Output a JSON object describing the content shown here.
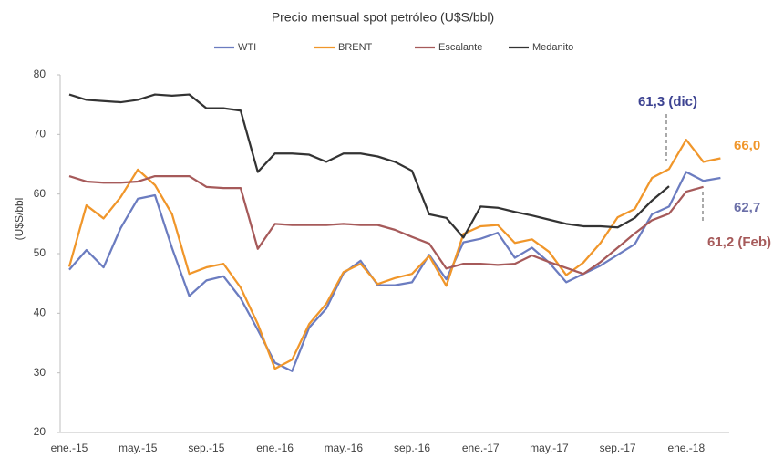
{
  "chart_data": {
    "type": "line",
    "title": "Precio mensual spot petróleo (U$S/bbl)",
    "y_label": "(U$S/bbl",
    "categories": [
      "ene.-15",
      null,
      null,
      null,
      "may.-15",
      null,
      null,
      null,
      "sep.-15",
      null,
      null,
      null,
      "ene.-16",
      null,
      null,
      null,
      "may.-16",
      null,
      null,
      null,
      "sep.-16",
      null,
      null,
      null,
      "ene.-17",
      null,
      null,
      null,
      "may.-17",
      null,
      null,
      null,
      "sep.-17",
      null,
      null,
      null,
      "ene.-18",
      null,
      null
    ],
    "series": [
      {
        "name": "WTI",
        "color": "#6b7cc0",
        "values": [
          47.3,
          50.6,
          47.7,
          54.3,
          59.2,
          59.8,
          50.9,
          42.9,
          45.5,
          46.2,
          42.5,
          37.2,
          31.7,
          30.3,
          37.6,
          40.8,
          46.7,
          48.8,
          44.7,
          44.7,
          45.2,
          49.8,
          45.7,
          51.9,
          52.5,
          53.5,
          49.3,
          51.0,
          48.5,
          45.2,
          46.6,
          48.0,
          49.8,
          51.6,
          56.6,
          57.9,
          63.7,
          62.2,
          62.7
        ]
      },
      {
        "name": "BRENT",
        "color": "#f0962a",
        "values": [
          47.8,
          58.1,
          55.9,
          59.5,
          64.1,
          61.5,
          56.6,
          46.6,
          47.7,
          48.3,
          44.3,
          38.2,
          30.7,
          32.2,
          38.2,
          41.6,
          46.9,
          48.3,
          44.9,
          45.9,
          46.6,
          49.6,
          44.6,
          53.3,
          54.6,
          54.8,
          51.8,
          52.4,
          50.3,
          46.4,
          48.5,
          51.8,
          56.1,
          57.5,
          62.7,
          64.2,
          69.1,
          65.4,
          66.0
        ]
      },
      {
        "name": "Escalante",
        "color": "#a65a5a",
        "values": [
          63.0,
          62.1,
          61.9,
          61.9,
          62.1,
          63.0,
          63.0,
          63.0,
          61.2,
          61.0,
          61.0,
          50.8,
          55.0,
          54.8,
          54.8,
          54.8,
          55.0,
          54.8,
          54.8,
          54.0,
          52.8,
          51.7,
          47.5,
          48.3,
          48.3,
          48.1,
          48.3,
          49.7,
          48.6,
          47.6,
          46.6,
          48.6,
          51.0,
          53.4,
          55.6,
          56.7,
          60.4,
          61.2,
          null
        ]
      },
      {
        "name": "Medanito",
        "color": "#333333",
        "values": [
          76.7,
          75.8,
          75.6,
          75.4,
          75.8,
          76.7,
          76.5,
          76.7,
          74.4,
          74.4,
          74.0,
          63.7,
          66.8,
          66.8,
          66.6,
          65.4,
          66.8,
          66.8,
          66.3,
          65.4,
          63.9,
          56.6,
          56.0,
          52.7,
          57.9,
          57.7,
          57.0,
          56.4,
          55.7,
          55.0,
          54.6,
          54.6,
          54.4,
          56.0,
          58.9,
          61.3,
          null,
          null,
          null
        ]
      }
    ],
    "ylim": [
      20,
      80
    ],
    "yticks": [
      20,
      30,
      40,
      50,
      60,
      70,
      80
    ],
    "grid": false,
    "legend": "top",
    "annotations": [
      {
        "text": "61,3 (dic)",
        "color": "#3d4392"
      },
      {
        "text": "66,0",
        "color": "#f0962a"
      },
      {
        "text": "62,7",
        "color": "#6b6fa8"
      },
      {
        "text": "61,2 (Feb)",
        "color": "#a65a5a"
      }
    ]
  }
}
